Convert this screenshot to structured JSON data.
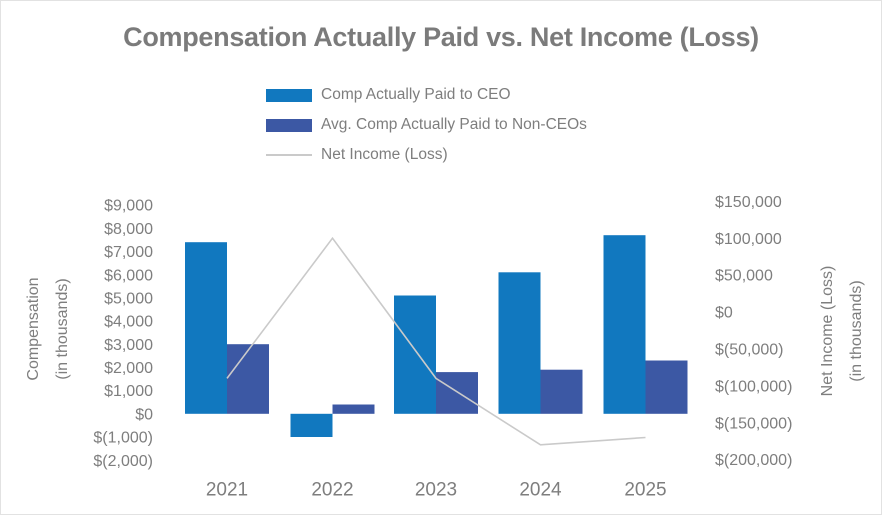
{
  "chart_data": {
    "type": "bar",
    "subtype": "grouped-bars-with-line-overlay",
    "title": "Compensation Actually Paid vs. Net Income (Loss)",
    "categories": [
      "2021",
      "2022",
      "2023",
      "2024",
      "2025"
    ],
    "series": [
      {
        "name": "Comp Actually Paid to CEO",
        "type": "bar",
        "axis": "left",
        "color": "#1178BF",
        "values": [
          7400,
          -1000,
          5100,
          6100,
          7700
        ]
      },
      {
        "name": "Avg. Comp Actually Paid to Non-CEOs",
        "type": "bar",
        "axis": "left",
        "color": "#3C58A4",
        "values": [
          3000,
          400,
          1800,
          1900,
          2300
        ]
      },
      {
        "name": "Net Income (Loss)",
        "type": "line",
        "axis": "right",
        "color": "#CACACA",
        "values": [
          -90000,
          100000,
          -90000,
          -180000,
          -170000
        ]
      }
    ],
    "left_axis": {
      "title": "Compensation\n(in thousands)",
      "range": [
        -2000,
        9000
      ],
      "tick_step": 1000,
      "tick_values": [
        9000,
        8000,
        7000,
        6000,
        5000,
        4000,
        3000,
        2000,
        1000,
        0,
        -1000,
        -2000
      ],
      "tick_labels": [
        "$9,000",
        "$8,000",
        "$7,000",
        "$6,000",
        "$5,000",
        "$4,000",
        "$3,000",
        "$2,000",
        "$1,000",
        "$0",
        "$(1,000)",
        "$(2,000)"
      ]
    },
    "right_axis": {
      "title": "Net Income (Loss)\n(in thousands)",
      "range": [
        -200000,
        150000
      ],
      "tick_step": 50000,
      "tick_values": [
        150000,
        100000,
        50000,
        0,
        -50000,
        -100000,
        -150000,
        -200000
      ],
      "tick_labels": [
        "$150,000",
        "$100,000",
        "$50,000",
        "$0",
        "$(50,000)",
        "$(100,000)",
        "$(150,000)",
        "$(200,000)"
      ]
    },
    "legend_position": "top",
    "grid": false,
    "text_color": "#7E7E7E",
    "title_color": "#7B7B7B"
  }
}
